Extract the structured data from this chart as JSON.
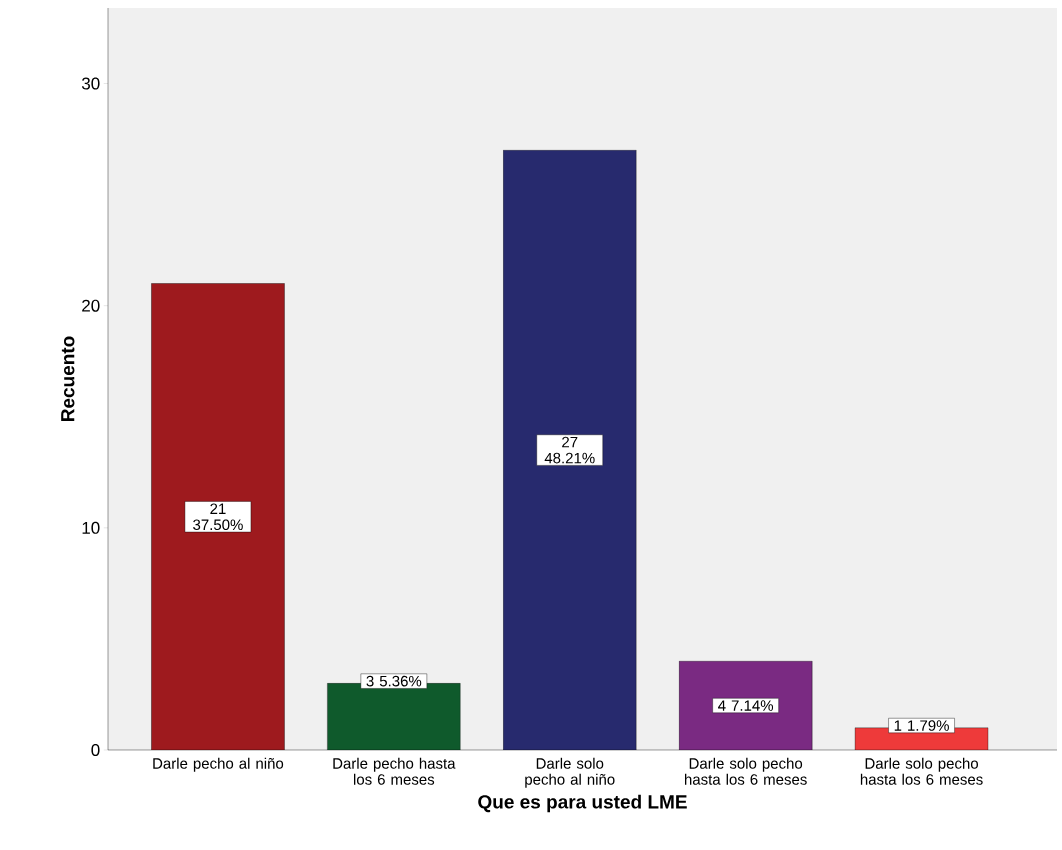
{
  "chart_data": {
    "type": "bar",
    "xlabel": "Que es para usted LME",
    "ylabel": "Recuento",
    "categories": [
      "Darle pecho al niño",
      "Darle pecho hasta los 6 meses",
      "Darle solo pecho al niño",
      "Darle solo pecho hasta los 6 meses",
      "Darle solo pecho hasta los 6 meses"
    ],
    "values": [
      21,
      3,
      27,
      4,
      1
    ],
    "value_labels": [
      "21 37.50%",
      "3 5.36%",
      "27 48.21%",
      "4 7.14%",
      "1 1.79%"
    ],
    "colors": [
      "#9e1a1e",
      "#0f5a2c",
      "#272a6e",
      "#7a2a82",
      "#ee3a3a"
    ],
    "ylim": [
      0,
      33.4
    ],
    "yticks": [
      0,
      10,
      20,
      30
    ],
    "grid": false
  }
}
